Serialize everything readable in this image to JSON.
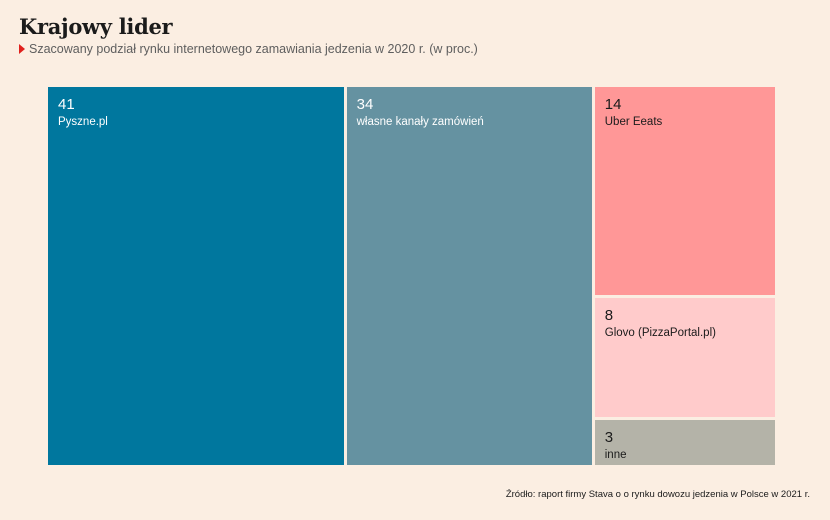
{
  "title": "Krajowy lider",
  "subtitle": "Szacowany podział rynku internetowego zamawiania jedzenia w 2020 r. (w proc.)",
  "source": "Źródło: raport firmy Stava o o rynku dowozu jedzenia w Polsce w 2021 r.",
  "chart_data": {
    "type": "treemap",
    "title": "Krajowy lider",
    "subtitle": "Szacowany podział rynku internetowego zamawiania jedzenia w 2020 r. (w proc.)",
    "unit": "%",
    "items": [
      {
        "name": "Pyszne.pl",
        "value": 41,
        "color": "#00779e",
        "text": "light"
      },
      {
        "name": "własne kanały zamówień",
        "value": 34,
        "color": "#6592a1",
        "text": "light"
      },
      {
        "name": "Uber Eeats",
        "value": 14,
        "color": "#ff9797",
        "text": "dark"
      },
      {
        "name": "Glovo (PizzaPortal.pl)",
        "value": 8,
        "color": "#ffcbcb",
        "text": "dark"
      },
      {
        "name": "inne",
        "value": 3,
        "color": "#b4b3a8",
        "text": "dark"
      }
    ]
  }
}
